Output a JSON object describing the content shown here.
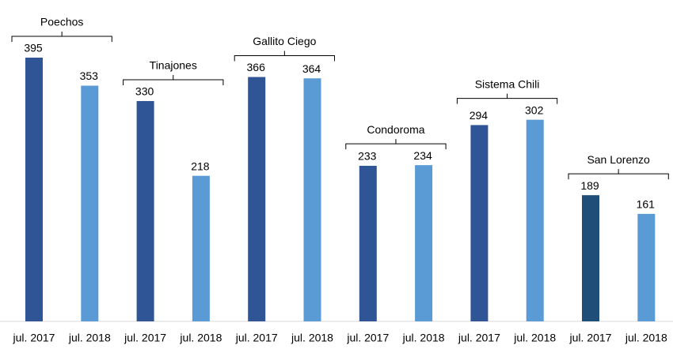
{
  "chart_data": {
    "type": "bar",
    "categories": [
      "jul. 2017",
      "jul. 2018",
      "jul. 2017",
      "jul. 2018",
      "jul. 2017",
      "jul. 2018",
      "jul. 2017",
      "jul. 2018",
      "jul. 2017",
      "jul. 2018",
      "jul. 2017",
      "jul. 2018"
    ],
    "values": [
      395,
      353,
      330,
      218,
      366,
      364,
      233,
      234,
      294,
      302,
      189,
      161
    ],
    "colors": [
      "#2f5597",
      "#5b9bd5",
      "#2f5597",
      "#5b9bd5",
      "#2f5597",
      "#5b9bd5",
      "#2f5597",
      "#5b9bd5",
      "#2f5597",
      "#5b9bd5",
      "#1f4e79",
      "#5b9bd5"
    ],
    "groups": [
      "Poechos",
      "Tinajones",
      "Gallito Ciego",
      "Condoroma",
      "Sistema Chili",
      "San Lorenzo"
    ]
  }
}
